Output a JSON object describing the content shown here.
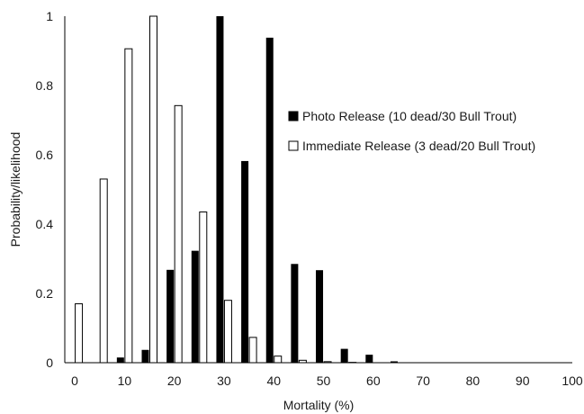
{
  "chart_data": {
    "type": "bar",
    "title": "",
    "xlabel": "Mortality (%)",
    "ylabel": "Probability/likelihood",
    "xlim": [
      -2,
      100
    ],
    "ylim": [
      0,
      1
    ],
    "x_ticks": [
      0,
      10,
      20,
      30,
      40,
      50,
      60,
      70,
      80,
      90,
      100
    ],
    "y_ticks": [
      0,
      0.2,
      0.4,
      0.6,
      0.8,
      1
    ],
    "y_tick_labels": [
      "0",
      "0.2",
      "0.4",
      "0.6",
      "0.8",
      "1"
    ],
    "grid": false,
    "legend_position": "right-center",
    "series": [
      {
        "name": "Photo Release (10 dead/30 Bull Trout)",
        "color": "#000000",
        "fill": "solid",
        "x": [
          0,
          5,
          10,
          15,
          20,
          25,
          30,
          35,
          40,
          45,
          50,
          55,
          60,
          65,
          70
        ],
        "values": [
          0,
          0,
          0.015,
          0.037,
          0.268,
          0.323,
          1.0,
          0.582,
          0.938,
          0.285,
          0.267,
          0.04,
          0.023,
          0.004,
          0.001
        ]
      },
      {
        "name": "Immediate Release (3 dead/20 Bull Trout)",
        "color": "#ffffff",
        "fill": "hollow",
        "x": [
          0,
          5,
          10,
          15,
          20,
          25,
          30,
          35,
          40,
          45,
          50,
          55,
          60,
          65,
          70
        ],
        "values": [
          0.17,
          0.53,
          0.906,
          1.0,
          0.742,
          0.435,
          0.18,
          0.073,
          0.019,
          0.007,
          0.003,
          0.001,
          0,
          0,
          0
        ]
      }
    ]
  }
}
